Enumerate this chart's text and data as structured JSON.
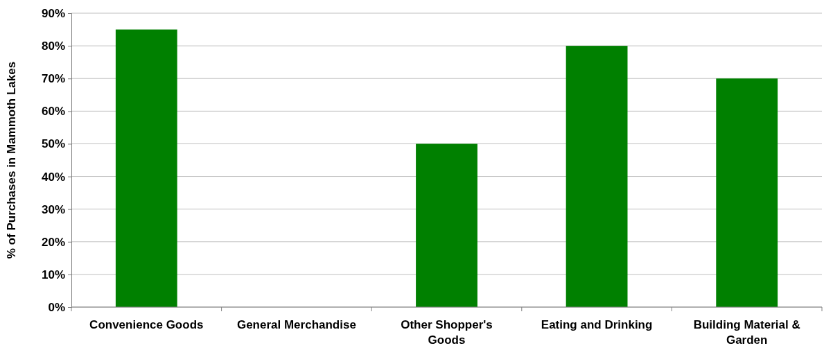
{
  "chart_data": {
    "type": "bar",
    "ylabel": "% of Purchases in Mammoth Lakes",
    "categories": [
      "Convenience Goods",
      "General Merchandise",
      "Other Shopper's Goods",
      "Eating and Drinking",
      "Building Material & Garden"
    ],
    "values": [
      85,
      0,
      50,
      80,
      70
    ],
    "color": "#008000",
    "ylim": [
      0,
      90
    ],
    "yticks": [
      {
        "value": 0,
        "label": "0%"
      },
      {
        "value": 10,
        "label": "10%"
      },
      {
        "value": 20,
        "label": "20%"
      },
      {
        "value": 30,
        "label": "30%"
      },
      {
        "value": 40,
        "label": "40%"
      },
      {
        "value": 50,
        "label": "50%"
      },
      {
        "value": 60,
        "label": "60%"
      },
      {
        "value": 70,
        "label": "70%"
      },
      {
        "value": 80,
        "label": "80%"
      },
      {
        "value": 90,
        "label": "90%"
      }
    ],
    "grid": "y"
  }
}
